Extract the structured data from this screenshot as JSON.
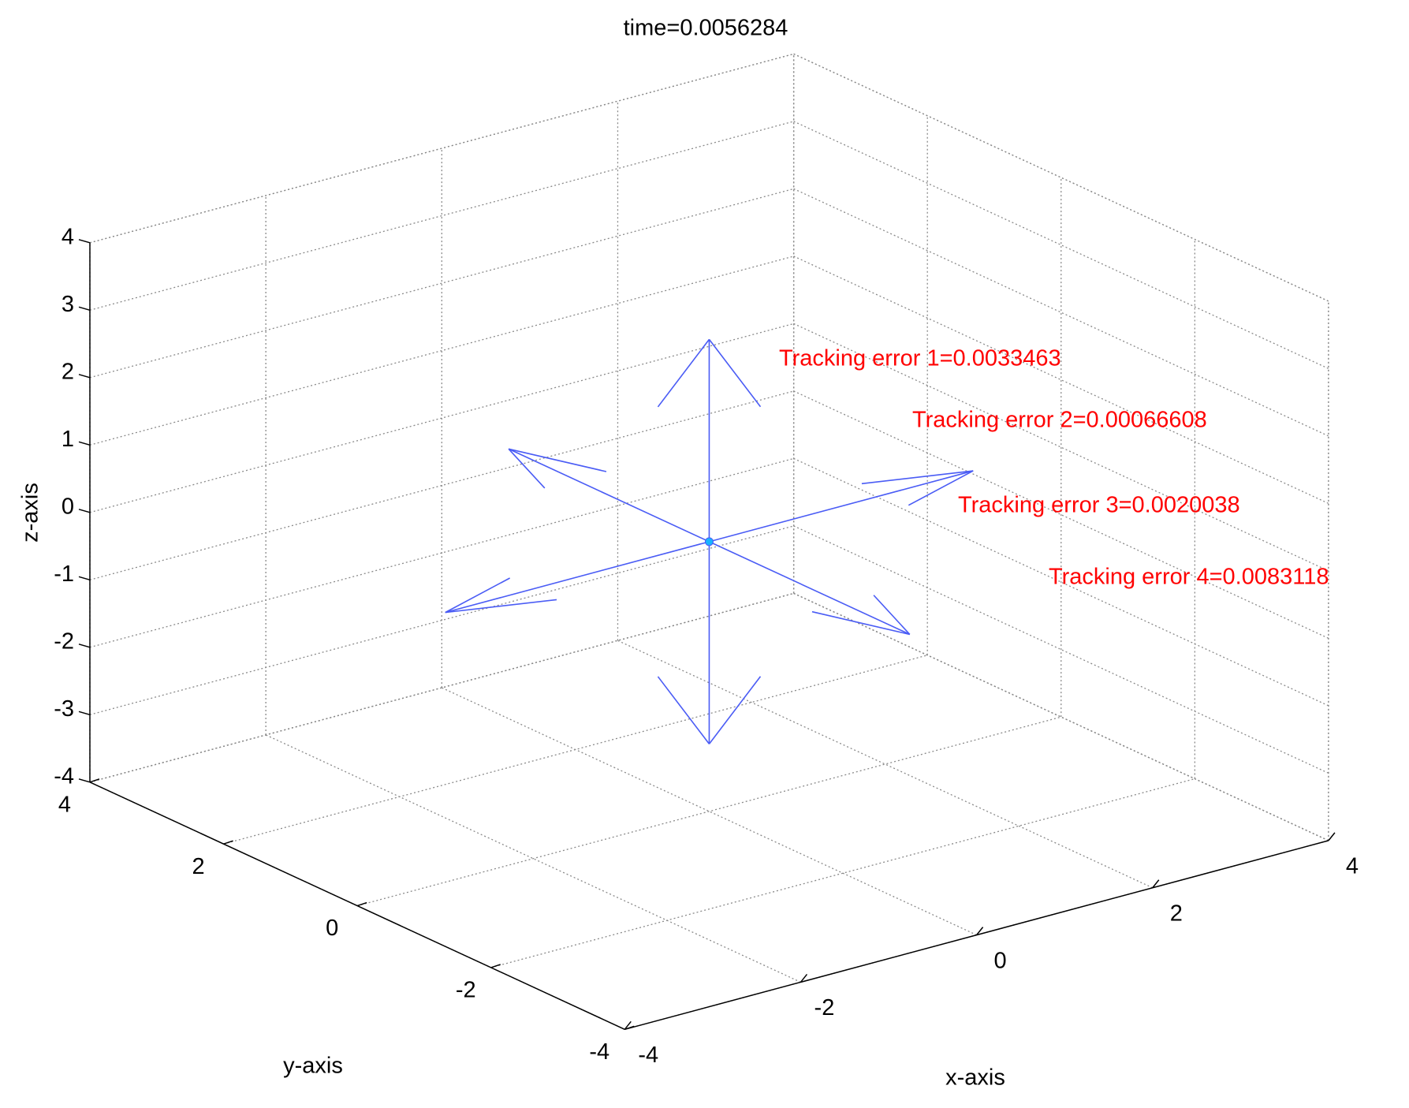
{
  "chart_data": {
    "type": "quiver3",
    "title": "time=0.0056284",
    "xlabel": "x-axis",
    "ylabel": "y-axis",
    "zlabel": "z-axis",
    "xlim": [
      -4,
      4
    ],
    "ylim": [
      -4,
      4
    ],
    "zlim": [
      -4,
      4
    ],
    "xticks": [
      -4,
      -2,
      0,
      2,
      4
    ],
    "yticks": [
      -4,
      -2,
      0,
      2,
      4
    ],
    "zticks": [
      -4,
      -3,
      -2,
      -1,
      0,
      1,
      2,
      3,
      4
    ],
    "grid": true,
    "color": "#4a5cf5",
    "x": [
      0,
      0,
      0,
      0,
      0,
      0
    ],
    "y": [
      0,
      0,
      0,
      0,
      0,
      0
    ],
    "z": [
      0,
      0,
      0,
      0,
      0,
      0
    ],
    "u": [
      3,
      -3,
      0,
      0,
      0,
      0
    ],
    "v": [
      0,
      0,
      3,
      -3,
      0,
      0
    ],
    "w": [
      0,
      0,
      0,
      0,
      3,
      -3
    ],
    "annotations": [
      {
        "text": "Tracking error 1=0.0033463",
        "color": "#ff0000"
      },
      {
        "text": "Tracking error 2=0.00066608",
        "color": "#ff0000"
      },
      {
        "text": "Tracking error 3=0.0020038",
        "color": "#ff0000"
      },
      {
        "text": "Tracking error 4=0.0083118",
        "color": "#ff0000"
      }
    ]
  }
}
